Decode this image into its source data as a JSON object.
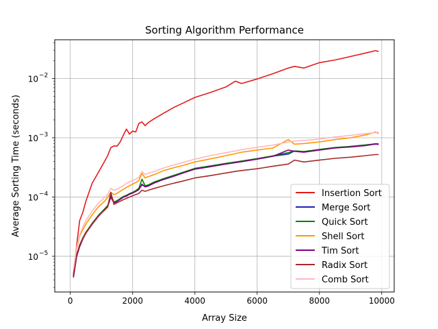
{
  "chart_data": {
    "type": "line",
    "title": "Sorting Algorithm Performance",
    "xlabel": "Array Size",
    "ylabel": "Average Sorting Time (seconds)",
    "xlim": [
      -500,
      10400
    ],
    "ylim": [
      2.5e-06,
      0.045
    ],
    "yscale": "log",
    "grid": true,
    "legend_position": "lower-right",
    "x_ticks": [
      0,
      2000,
      4000,
      6000,
      8000,
      10000
    ],
    "x_tick_labels": [
      "0",
      "2000",
      "4000",
      "6000",
      "8000",
      "10000"
    ],
    "y_ticks": [
      1e-05,
      0.0001,
      0.001,
      0.01
    ],
    "y_tick_labels": [
      "10",
      "10",
      "10",
      "10"
    ],
    "y_tick_exponents": [
      "−5",
      "−4",
      "−3",
      "−2"
    ],
    "x": [
      100,
      200,
      300,
      400,
      500,
      700,
      900,
      1100,
      1200,
      1300,
      1400,
      1500,
      1600,
      1700,
      1800,
      1900,
      2000,
      2100,
      2200,
      2300,
      2400,
      2500,
      2700,
      3000,
      3300,
      3600,
      4000,
      4500,
      5000,
      5300,
      5500,
      6000,
      6500,
      7000,
      7200,
      7500,
      8000,
      8500,
      9000,
      9500,
      9800,
      9900
    ],
    "series": [
      {
        "name": "Insertion Sort",
        "color": "#e41a1c",
        "values": [
          5e-06,
          1.5e-05,
          4e-05,
          5.5e-05,
          8.5e-05,
          0.00017,
          0.00026,
          0.0004,
          0.0005,
          0.00068,
          0.00073,
          0.00072,
          0.00085,
          0.0011,
          0.0014,
          0.00115,
          0.0013,
          0.00125,
          0.00175,
          0.00185,
          0.0016,
          0.0018,
          0.0021,
          0.0026,
          0.0032,
          0.0038,
          0.0048,
          0.0058,
          0.0072,
          0.009,
          0.0082,
          0.0098,
          0.012,
          0.015,
          0.016,
          0.015,
          0.0185,
          0.0205,
          0.0235,
          0.027,
          0.0295,
          0.0285
        ]
      },
      {
        "name": "Merge Sort",
        "color": "#1f1fb4",
        "values": [
          4.5e-06,
          1e-05,
          1.5e-05,
          2e-05,
          2.5e-05,
          3.5e-05,
          4.8e-05,
          6.2e-05,
          7e-05,
          0.000105,
          8e-05,
          8.5e-05,
          9.2e-05,
          0.0001,
          0.000105,
          0.000112,
          0.000118,
          0.000125,
          0.000135,
          0.00016,
          0.00015,
          0.000155,
          0.000175,
          0.0002,
          0.000225,
          0.000255,
          0.0003,
          0.00033,
          0.000365,
          0.000385,
          0.0004,
          0.00044,
          0.00049,
          0.00053,
          0.0006,
          0.00058,
          0.00063,
          0.00068,
          0.00071,
          0.00075,
          0.00078,
          0.00078
        ]
      },
      {
        "name": "Quick Sort",
        "color": "#008000",
        "values": [
          4.6e-06,
          1e-05,
          1.55e-05,
          2.05e-05,
          2.55e-05,
          3.6e-05,
          4.9e-05,
          6.3e-05,
          7.2e-05,
          0.00011,
          8.2e-05,
          8.7e-05,
          9.4e-05,
          0.000102,
          0.000107,
          0.000114,
          0.00012,
          0.000128,
          0.00014,
          0.0002,
          0.000155,
          0.00016,
          0.00018,
          0.000205,
          0.00023,
          0.00026,
          0.000305,
          0.000335,
          0.00037,
          0.00039,
          0.000405,
          0.000445,
          0.000495,
          0.00056,
          0.0006,
          0.000585,
          0.000635,
          0.000685,
          0.000715,
          0.00076,
          0.00079,
          0.00079
        ]
      },
      {
        "name": "Shell Sort",
        "color": "#ff9900",
        "values": [
          5e-06,
          1.3e-05,
          2.2e-05,
          2.8e-05,
          3.5e-05,
          5e-05,
          6.8e-05,
          8.5e-05,
          0.0001,
          0.00012,
          0.00011,
          0.000115,
          0.000125,
          0.000135,
          0.000145,
          0.000155,
          0.000165,
          0.000175,
          0.00019,
          0.00025,
          0.00021,
          0.00022,
          0.00024,
          0.00028,
          0.00031,
          0.00034,
          0.00039,
          0.00044,
          0.0005,
          0.00054,
          0.00057,
          0.00062,
          0.00067,
          0.00093,
          0.00078,
          0.0008,
          0.00085,
          0.00093,
          0.001,
          0.00112,
          0.00125,
          0.00118
        ]
      },
      {
        "name": "Tim Sort",
        "color": "#800080",
        "values": [
          4.4e-06,
          9.8e-06,
          1.45e-05,
          1.95e-05,
          2.45e-05,
          3.45e-05,
          4.7e-05,
          6.1e-05,
          6.9e-05,
          0.0001,
          7.9e-05,
          8.4e-05,
          9.1e-05,
          9.9e-05,
          0.000104,
          0.000111,
          0.000117,
          0.000124,
          0.000133,
          0.000165,
          0.000148,
          0.000153,
          0.000173,
          0.000198,
          0.000222,
          0.000252,
          0.000295,
          0.000325,
          0.00036,
          0.00038,
          0.000395,
          0.000435,
          0.000485,
          0.00062,
          0.00059,
          0.00057,
          0.00062,
          0.00067,
          0.0007,
          0.00074,
          0.00079,
          0.00077
        ]
      },
      {
        "name": "Radix Sort",
        "color": "#a52a2a",
        "values": [
          4.8e-06,
          1.05e-05,
          1.55e-05,
          2e-05,
          2.5e-05,
          3.5e-05,
          4.8e-05,
          6e-05,
          6.8e-05,
          0.00012,
          7.5e-05,
          8e-05,
          8.5e-05,
          9e-05,
          9.5e-05,
          0.0001,
          0.000105,
          0.00011,
          0.000115,
          0.00013,
          0.000125,
          0.00013,
          0.00014,
          0.000155,
          0.00017,
          0.000185,
          0.00021,
          0.00023,
          0.000255,
          0.00027,
          0.00028,
          0.0003,
          0.00033,
          0.00036,
          0.00042,
          0.00039,
          0.00042,
          0.00045,
          0.00047,
          0.0005,
          0.00052,
          0.00052
        ]
      },
      {
        "name": "Comb Sort",
        "color": "#ffb6c1",
        "values": [
          6e-06,
          1.4e-05,
          2.3e-05,
          3.1e-05,
          4e-05,
          5.8e-05,
          7.8e-05,
          9.8e-05,
          0.000112,
          0.00014,
          0.00013,
          0.000135,
          0.000145,
          0.000155,
          0.00017,
          0.00018,
          0.00019,
          0.0002,
          0.000215,
          0.00027,
          0.00024,
          0.00025,
          0.00027,
          0.00031,
          0.000345,
          0.00038,
          0.000435,
          0.0005,
          0.00056,
          0.0006,
          0.00063,
          0.00069,
          0.00075,
          0.00085,
          0.00088,
          0.0009,
          0.00095,
          0.00103,
          0.0011,
          0.00118,
          0.00122,
          0.00125
        ]
      }
    ]
  }
}
